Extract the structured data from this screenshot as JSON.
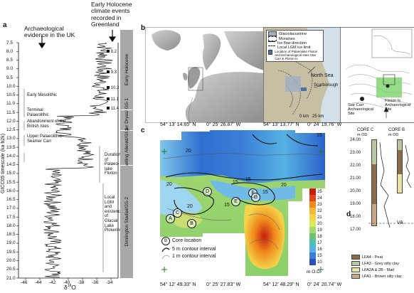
{
  "panel_a": {
    "label": "a",
    "title_left": "Archaeological evidence in the UK",
    "title_right": "Early Holocene climate events recorded in Greenland",
    "y_axis_label": "GICC05 timescale (ka b2k)",
    "x_axis_label": "δ18O",
    "y_ticks": [
      "7.5",
      "8.0",
      "8.5",
      "9.0",
      "9.5",
      "10.0",
      "10.5",
      "11.0",
      "11.5",
      "12.0",
      "12.5",
      "13.0",
      "13.5",
      "14.0",
      "14.5",
      "15.0",
      "15.5",
      "16.0",
      "16.5",
      "17.0",
      "17.5",
      "18.0",
      "18.5",
      "19.0",
      "19.5",
      "20.0",
      "20.5",
      "21.0"
    ],
    "x_ticks": [
      "-46",
      "-44",
      "-42",
      "-40",
      "-38",
      "-36",
      "-34"
    ],
    "events": [
      "8.2",
      "9.3",
      "10.2",
      "11.1",
      "11.4"
    ],
    "archaeo_labels": [
      "Early Mesolithic",
      "Terminal Palaeolithic",
      "Abandonment of the British Isles",
      "Upper Palaeolithic Seamer Carr",
      "Duration of Palaeo-lake Flixton",
      "Local LGM and existence of Glacial Lake Pickering"
    ],
    "phases": [
      "Early Holocene",
      "Younger Dryas/ GS-1",
      "Bølling Allerød/GI-1",
      "Dimlington Stadial/GS-2"
    ]
  },
  "panel_b": {
    "label": "b",
    "legend": [
      "Glaciolacustrine",
      "Moraines",
      "Ice flow direction",
      "Local LGM ice limit",
      "Location of Palaeolake Flixton and archaeological sites Star Carr & Flixton Is"
    ],
    "place_labels": [
      "North Sea",
      "Scarborough"
    ],
    "scale": "0 km   25 km",
    "site_labels": [
      "Flixton Is Archaeological Site",
      "Star Carr Archaeological Site"
    ]
  },
  "panel_c": {
    "label": "c",
    "coords_top": [
      "54° 13' 14.65\" N",
      "0° 25' 26.87\" W",
      "54° 13' 13.77\" N",
      "0° 24' 19.76\" W"
    ],
    "coords_bottom": [
      "54° 12' 49.33\" N",
      "0° 25' 27.83\" W",
      "54° 12' 48.29\" N",
      "0° 24' 20.74\" W"
    ],
    "colorbar": [
      "25",
      "24",
      "23",
      "22",
      "21",
      "20",
      "19",
      "18",
      "17",
      "16",
      "15",
      "10"
    ],
    "colorbar_unit": "m O.D.",
    "contour_labels": [
      "20",
      "20",
      "20",
      "15",
      "15",
      "15",
      "20",
      "15",
      "15"
    ],
    "core_markers": [
      "A",
      "B",
      "C",
      "D",
      "E",
      "F",
      "G"
    ],
    "legend": [
      "Core location",
      "5 m contour interval",
      "1 m contour interval"
    ]
  },
  "panel_d": {
    "label": "d",
    "cores": [
      "CORE C",
      "CORE B"
    ],
    "unit": "m OD",
    "depths": [
      "24.00",
      "23.00",
      "22.00",
      "21.00",
      "20.00",
      "19.00",
      "18.00",
      "17.00"
    ],
    "va_label": "VA",
    "legend": [
      "LFA4 - Peat",
      "LFA3 - Grey silty clay",
      "LFA2A & 2B - Marl",
      "LFA1 - Brown silty clay"
    ],
    "legend_colors": [
      "#8a6a48",
      "#b9c7a0",
      "#e9e2a4",
      "#c9a785"
    ]
  }
}
